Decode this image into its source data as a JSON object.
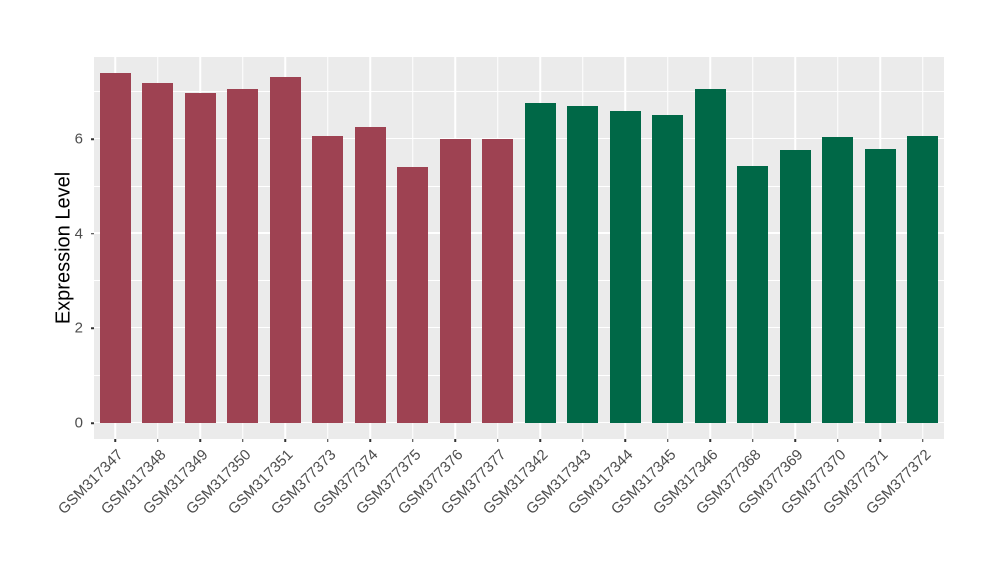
{
  "chart_data": {
    "type": "bar",
    "title": "",
    "xlabel": "",
    "ylabel": "Expression Level",
    "ylim": [
      0,
      7.75
    ],
    "yticks_major": [
      0,
      2,
      4,
      6
    ],
    "yticks_minor": [
      1,
      3,
      5,
      7
    ],
    "grid": true,
    "legend": false,
    "categories": [
      "GSM317347",
      "GSM317348",
      "GSM317349",
      "GSM317350",
      "GSM317351",
      "GSM377373",
      "GSM377374",
      "GSM377375",
      "GSM377376",
      "GSM377377",
      "GSM317342",
      "GSM317343",
      "GSM317344",
      "GSM317345",
      "GSM317346",
      "GSM377368",
      "GSM377369",
      "GSM377370",
      "GSM377371",
      "GSM377372"
    ],
    "bars": [
      {
        "label": "GSM317347",
        "value": 7.4,
        "group": "groupA"
      },
      {
        "label": "GSM317348",
        "value": 7.19,
        "group": "groupA"
      },
      {
        "label": "GSM317349",
        "value": 6.98,
        "group": "groupA"
      },
      {
        "label": "GSM317350",
        "value": 7.06,
        "group": "groupA"
      },
      {
        "label": "GSM317351",
        "value": 7.32,
        "group": "groupA"
      },
      {
        "label": "GSM377373",
        "value": 6.07,
        "group": "groupA"
      },
      {
        "label": "GSM377374",
        "value": 6.26,
        "group": "groupA"
      },
      {
        "label": "GSM377375",
        "value": 5.41,
        "group": "groupA"
      },
      {
        "label": "GSM377376",
        "value": 6.0,
        "group": "groupA"
      },
      {
        "label": "GSM377377",
        "value": 6.0,
        "group": "groupA"
      },
      {
        "label": "GSM317342",
        "value": 6.76,
        "group": "groupB"
      },
      {
        "label": "GSM317343",
        "value": 6.7,
        "group": "groupB"
      },
      {
        "label": "GSM317344",
        "value": 6.6,
        "group": "groupB"
      },
      {
        "label": "GSM317345",
        "value": 6.51,
        "group": "groupB"
      },
      {
        "label": "GSM317346",
        "value": 7.06,
        "group": "groupB"
      },
      {
        "label": "GSM377368",
        "value": 5.44,
        "group": "groupB"
      },
      {
        "label": "GSM377369",
        "value": 5.77,
        "group": "groupB"
      },
      {
        "label": "GSM377370",
        "value": 6.05,
        "group": "groupB"
      },
      {
        "label": "GSM377371",
        "value": 5.8,
        "group": "groupB"
      },
      {
        "label": "GSM377372",
        "value": 6.06,
        "group": "groupB"
      }
    ],
    "group_colors": {
      "groupA": "#9E4252",
      "groupB": "#006847"
    },
    "colors": {
      "panel_background": "#EBEBEB",
      "gridline": "#FFFFFF",
      "axis_text": "#4D4D4D",
      "axis_title": "#000000",
      "tick_mark": "#333333",
      "figure_background": "#FFFFFF"
    }
  }
}
